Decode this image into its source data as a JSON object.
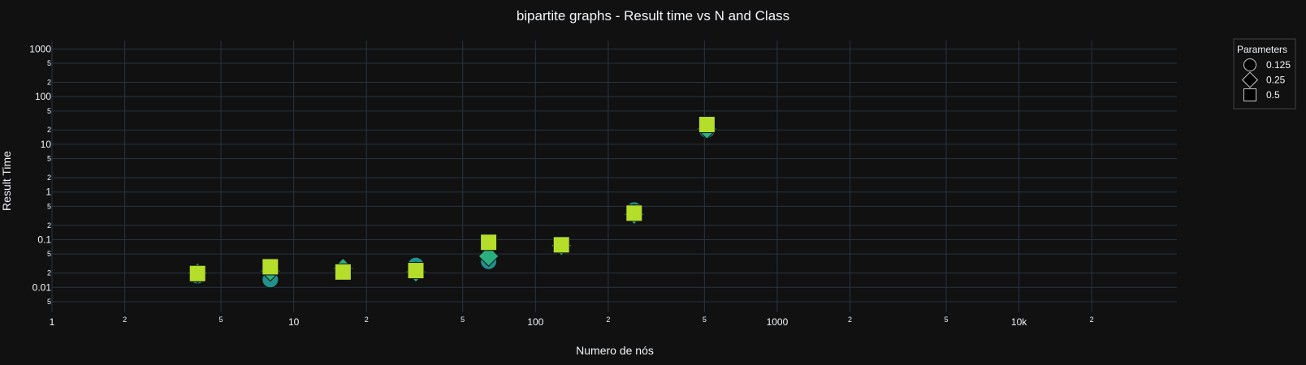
{
  "chart_data": {
    "type": "scatter",
    "title": "bipartite graphs - Result time vs N and Class",
    "xlabel": "Numero de nós",
    "ylabel": "Result Time",
    "x_scale": "log",
    "y_scale": "log",
    "xlim": [
      1,
      45000
    ],
    "ylim": [
      0.003,
      1500
    ],
    "x_major_ticks": [
      {
        "value": 1,
        "label": "1"
      },
      {
        "value": 10,
        "label": "10"
      },
      {
        "value": 100,
        "label": "100"
      },
      {
        "value": 1000,
        "label": "1000"
      },
      {
        "value": 10000,
        "label": "10k"
      }
    ],
    "x_minor_ticks": [
      {
        "value": 2,
        "label": "2"
      },
      {
        "value": 5,
        "label": "5"
      },
      {
        "value": 20,
        "label": "2"
      },
      {
        "value": 50,
        "label": "5"
      },
      {
        "value": 200,
        "label": "2"
      },
      {
        "value": 500,
        "label": "5"
      },
      {
        "value": 2000,
        "label": "2"
      },
      {
        "value": 5000,
        "label": "5"
      },
      {
        "value": 20000,
        "label": "2"
      }
    ],
    "y_major_ticks": [
      {
        "value": 0.01,
        "label": "0.01"
      },
      {
        "value": 0.1,
        "label": "0.1"
      },
      {
        "value": 1,
        "label": "1"
      },
      {
        "value": 10,
        "label": "10"
      },
      {
        "value": 100,
        "label": "100"
      },
      {
        "value": 1000,
        "label": "1000"
      }
    ],
    "y_minor_ticks": [
      {
        "value": 0.005,
        "label": "5"
      },
      {
        "value": 0.02,
        "label": "2"
      },
      {
        "value": 0.05,
        "label": "5"
      },
      {
        "value": 0.2,
        "label": "2"
      },
      {
        "value": 0.5,
        "label": "5"
      },
      {
        "value": 2,
        "label": "2"
      },
      {
        "value": 5,
        "label": "5"
      },
      {
        "value": 20,
        "label": "2"
      },
      {
        "value": 50,
        "label": "5"
      },
      {
        "value": 200,
        "label": "2"
      },
      {
        "value": 500,
        "label": "5"
      }
    ],
    "grid": true,
    "legend": {
      "title": "Parameters",
      "placement": "top-right"
    },
    "series": [
      {
        "name": "0.125",
        "symbol": "circle",
        "color": "#21918c",
        "points": [
          {
            "x": 4,
            "y": 0.0175
          },
          {
            "x": 8,
            "y": 0.0145
          },
          {
            "x": 16,
            "y": 0.021
          },
          {
            "x": 32,
            "y": 0.029
          },
          {
            "x": 64,
            "y": 0.035
          },
          {
            "x": 128,
            "y": 0.072
          },
          {
            "x": 256,
            "y": 0.42
          },
          {
            "x": 512,
            "y": 20
          }
        ]
      },
      {
        "name": "0.25",
        "symbol": "diamond",
        "color": "#2ab07f",
        "points": [
          {
            "x": 4,
            "y": 0.02
          },
          {
            "x": 8,
            "y": 0.022
          },
          {
            "x": 16,
            "y": 0.025
          },
          {
            "x": 32,
            "y": 0.021
          },
          {
            "x": 64,
            "y": 0.045
          },
          {
            "x": 128,
            "y": 0.075
          },
          {
            "x": 256,
            "y": 0.34
          },
          {
            "x": 512,
            "y": 21
          }
        ]
      },
      {
        "name": "0.5",
        "symbol": "square",
        "color": "#b5de2b",
        "points": [
          {
            "x": 4,
            "y": 0.0195
          },
          {
            "x": 8,
            "y": 0.027
          },
          {
            "x": 16,
            "y": 0.021
          },
          {
            "x": 32,
            "y": 0.0225
          },
          {
            "x": 64,
            "y": 0.088
          },
          {
            "x": 128,
            "y": 0.078
          },
          {
            "x": 256,
            "y": 0.36
          },
          {
            "x": 512,
            "y": 26
          }
        ]
      }
    ],
    "colors": {
      "background": "#111111",
      "grid": "#283442",
      "text": "#f2f5fa",
      "legend_border": "#444444"
    }
  }
}
